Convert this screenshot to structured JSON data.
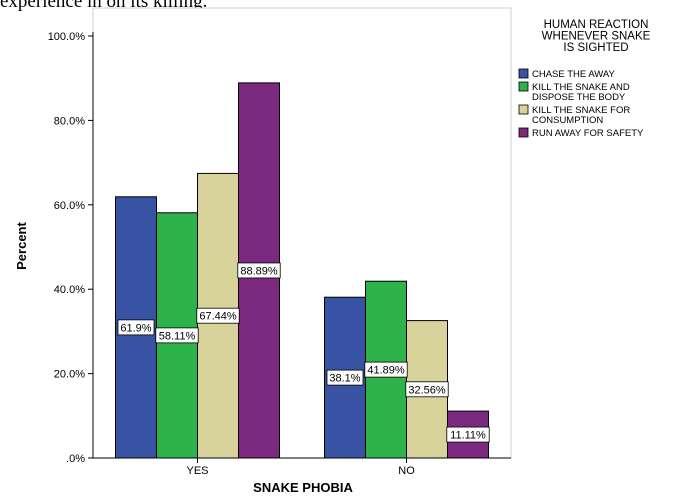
{
  "page": {
    "top_caption": "experience in on its killing."
  },
  "chart_data": {
    "type": "bar",
    "categories": [
      "YES",
      "NO"
    ],
    "xlabel": "SNAKE PHOBIA",
    "ylabel": "Percent",
    "ylim": [
      0,
      100
    ],
    "yticks": [
      ".0%",
      "20.0%",
      "40.0%",
      "60.0%",
      "80.0%",
      "100.0%"
    ],
    "grid": false,
    "legend_position": "right",
    "legend_title": [
      "HUMAN REACTION",
      "WHENEVER SNAKE",
      "IS SIGHTED"
    ],
    "series": [
      {
        "name": "CHASE THE AWAY",
        "legend_lines": [
          "CHASE THE AWAY"
        ],
        "color": "#3953a4",
        "values": [
          61.9,
          38.1
        ],
        "labels": [
          "61.9%",
          "38.1%"
        ]
      },
      {
        "name": "KILL THE SNAKE AND DISPOSE THE BODY",
        "legend_lines": [
          "KILL THE SNAKE AND",
          "DISPOSE THE BODY"
        ],
        "color": "#2db34a",
        "values": [
          58.11,
          41.89
        ],
        "labels": [
          "58.11%",
          "41.89%"
        ]
      },
      {
        "name": "KILL THE SNAKE FOR CONSUMPTION",
        "legend_lines": [
          "KILL THE SNAKE FOR",
          "CONSUMPTION"
        ],
        "color": "#d8d39a",
        "values": [
          67.44,
          32.56
        ],
        "labels": [
          "67.44%",
          "32.56%"
        ]
      },
      {
        "name": "RUN AWAY FOR SAFETY",
        "legend_lines": [
          "RUN AWAY FOR SAFETY"
        ],
        "color": "#7b2a7f",
        "values": [
          88.89,
          11.11
        ],
        "labels": [
          "88.89%",
          "11.11%"
        ]
      }
    ]
  }
}
